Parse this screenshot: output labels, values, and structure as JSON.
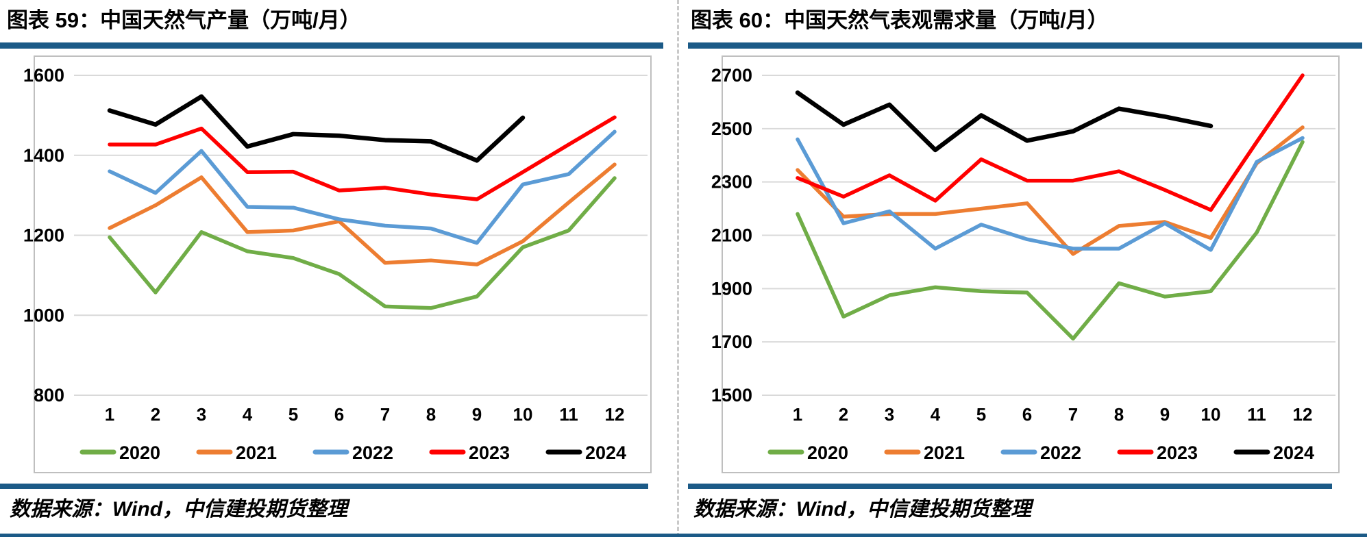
{
  "accent_color": "#1B5A87",
  "grid_color": "#D9D9D9",
  "frame_color": "#BFBFBF",
  "panels": [
    {
      "title": "图表 59：中国天然气产量（万吨/月）",
      "source": "数据来源：Wind，中信建投期货整理"
    },
    {
      "title": "图表 60：中国天然气表观需求量（万吨/月）",
      "source": "数据来源：Wind，中信建投期货整理"
    }
  ],
  "chart_data": [
    {
      "type": "line",
      "title": "中国天然气产量（万吨/月）",
      "xlabel": "",
      "ylabel": "",
      "x_labels": [
        "1",
        "2",
        "3",
        "4",
        "5",
        "6",
        "7",
        "8",
        "9",
        "10",
        "11",
        "12"
      ],
      "ylim": [
        800,
        1600
      ],
      "y_ticks": [
        1600,
        1400,
        1200,
        1000,
        800
      ],
      "grid": true,
      "legend_position": "bottom",
      "series": [
        {
          "name": "2020",
          "color": "#70AD47",
          "values": [
            1195,
            1057,
            1208,
            1160,
            1143,
            1103,
            1022,
            1018,
            1047,
            1170,
            1212,
            1343
          ]
        },
        {
          "name": "2021",
          "color": "#ED7D31",
          "values": [
            1218,
            1275,
            1345,
            1208,
            1212,
            1235,
            1131,
            1137,
            1127,
            1185,
            1282,
            1377
          ]
        },
        {
          "name": "2022",
          "color": "#5B9BD5",
          "values": [
            1360,
            1306,
            1411,
            1271,
            1269,
            1240,
            1224,
            1217,
            1181,
            1327,
            1353,
            1459
          ]
        },
        {
          "name": "2023",
          "color": "#FF0000",
          "values": [
            1427,
            1427,
            1467,
            1358,
            1359,
            1312,
            1319,
            1302,
            1290,
            1358,
            1427,
            1495
          ]
        },
        {
          "name": "2024",
          "color": "#000000",
          "values": [
            1512,
            1477,
            1547,
            1422,
            1453,
            1449,
            1438,
            1435,
            1387,
            1494
          ]
        }
      ]
    },
    {
      "type": "line",
      "title": "中国天然气表观需求量（万吨/月）",
      "xlabel": "",
      "ylabel": "",
      "x_labels": [
        "1",
        "2",
        "3",
        "4",
        "5",
        "6",
        "7",
        "8",
        "9",
        "10",
        "11",
        "12"
      ],
      "ylim": [
        1500,
        2700
      ],
      "y_ticks": [
        2700,
        2500,
        2300,
        2100,
        1900,
        1700,
        1500
      ],
      "grid": true,
      "legend_position": "bottom",
      "series": [
        {
          "name": "2020",
          "color": "#70AD47",
          "values": [
            2180,
            1795,
            1875,
            1905,
            1890,
            1885,
            1712,
            1920,
            1870,
            1890,
            2110,
            2450
          ]
        },
        {
          "name": "2021",
          "color": "#ED7D31",
          "values": [
            2345,
            2170,
            2180,
            2180,
            2200,
            2220,
            2030,
            2135,
            2150,
            2090,
            2370,
            2505
          ]
        },
        {
          "name": "2022",
          "color": "#5B9BD5",
          "values": [
            2460,
            2145,
            2190,
            2050,
            2140,
            2085,
            2050,
            2050,
            2145,
            2045,
            2375,
            2465
          ]
        },
        {
          "name": "2023",
          "color": "#FF0000",
          "values": [
            2315,
            2245,
            2325,
            2230,
            2385,
            2305,
            2305,
            2340,
            2270,
            2195,
            2450,
            2700
          ]
        },
        {
          "name": "2024",
          "color": "#000000",
          "values": [
            2635,
            2515,
            2590,
            2420,
            2550,
            2455,
            2490,
            2575,
            2545,
            2510
          ]
        }
      ]
    }
  ]
}
